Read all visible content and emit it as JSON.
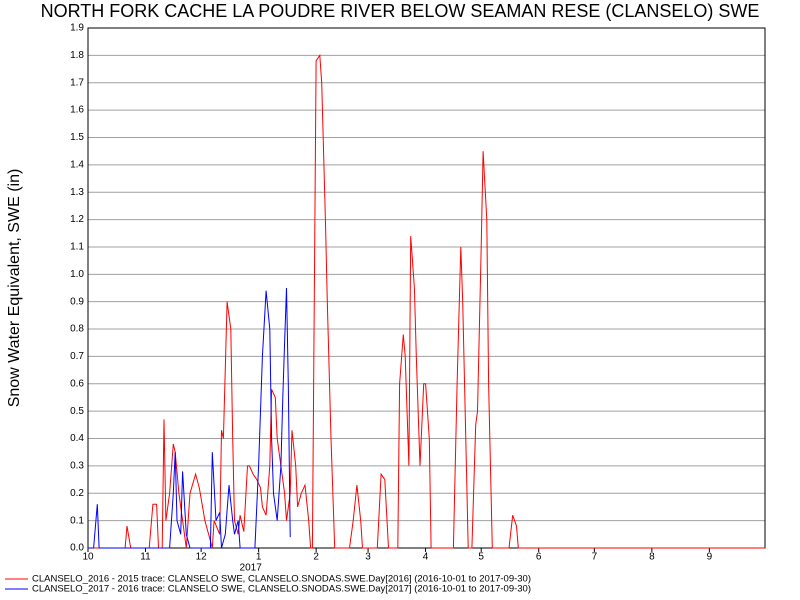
{
  "chart_data": {
    "type": "line",
    "title": "NORTH FORK CACHE LA POUDRE RIVER BELOW SEAMAN RESE (CLANSELO) SWE",
    "y_label": "Snow Water Equivalent, SWE (in)",
    "x_year_label": "2017",
    "xlim": [
      0,
      365
    ],
    "xticks": [
      {
        "value": 0,
        "label": "10"
      },
      {
        "value": 31,
        "label": "11"
      },
      {
        "value": 61,
        "label": "12"
      },
      {
        "value": 92,
        "label": "1"
      },
      {
        "value": 123,
        "label": "2"
      },
      {
        "value": 151,
        "label": "3"
      },
      {
        "value": 182,
        "label": "4"
      },
      {
        "value": 212,
        "label": "5"
      },
      {
        "value": 243,
        "label": "6"
      },
      {
        "value": 273,
        "label": "7"
      },
      {
        "value": 304,
        "label": "8"
      },
      {
        "value": 335,
        "label": "9"
      }
    ],
    "ylim": [
      0,
      1.9
    ],
    "yticks": [
      {
        "value": 0,
        "label": "0.0"
      },
      0.1,
      0.2,
      0.3,
      0.4,
      0.5,
      0.6,
      0.7,
      0.8,
      0.9,
      {
        "value": 1,
        "label": "1.0"
      },
      1.1,
      1.2,
      1.3,
      1.4,
      1.5,
      1.6,
      1.7,
      1.8,
      1.9
    ],
    "grid": true,
    "series": [
      {
        "name": "CLANSELO_2016 - 2015 trace: CLANSELO SWE, CLANSELO.SNODAS.SWE.Day[2016] (2016-10-01 to 2017-09-30)",
        "color": "#ff0000",
        "x": [
          0,
          20,
          21,
          23,
          33,
          35,
          37,
          38,
          40,
          41,
          42,
          44,
          46,
          47,
          49,
          51,
          53,
          55,
          58,
          60,
          63,
          65,
          67,
          68,
          71,
          72,
          73,
          75,
          77,
          78,
          79,
          81,
          82,
          84,
          86,
          87,
          89,
          91,
          93,
          94,
          96,
          98,
          99,
          101,
          102,
          104,
          106,
          107,
          109,
          110,
          112,
          113,
          115,
          117,
          119,
          120,
          121,
          123,
          125,
          126,
          128,
          129,
          131,
          133,
          141,
          143,
          145,
          147,
          148,
          156,
          158,
          160,
          162,
          167,
          168,
          170,
          171,
          173,
          174,
          176,
          177,
          179,
          181,
          182,
          184,
          185,
          197,
          199,
          201,
          202,
          204,
          205,
          207,
          209,
          210,
          212,
          213,
          215,
          216,
          218,
          227,
          229,
          231,
          232,
          365
        ],
        "values": [
          0,
          0,
          0.08,
          0,
          0,
          0.16,
          0.16,
          0,
          0,
          0.47,
          0.1,
          0.2,
          0.38,
          0.35,
          0.2,
          0.1,
          0,
          0.2,
          0.27,
          0.22,
          0.1,
          0.05,
          0,
          0.1,
          0.05,
          0.43,
          0.4,
          0.9,
          0.8,
          0.4,
          0.1,
          0.05,
          0.12,
          0.06,
          0.3,
          0.3,
          0.27,
          0.25,
          0.22,
          0.15,
          0.12,
          0.3,
          0.58,
          0.55,
          0.4,
          0.3,
          0.2,
          0.1,
          0.2,
          0.43,
          0.3,
          0.15,
          0.2,
          0.23,
          0.1,
          0,
          0,
          1.78,
          1.8,
          1.7,
          1.2,
          0.9,
          0.4,
          0,
          0,
          0.1,
          0.23,
          0.1,
          0,
          0,
          0.27,
          0.25,
          0,
          0,
          0.6,
          0.78,
          0.7,
          0.3,
          1.14,
          0.95,
          0.7,
          0.3,
          0.6,
          0.6,
          0.4,
          0,
          0,
          0.6,
          1.1,
          0.9,
          0.3,
          0,
          0,
          0.45,
          0.5,
          1.1,
          1.45,
          1.2,
          0.6,
          0,
          0,
          0.12,
          0.08,
          0,
          0
        ]
      },
      {
        "name": "CLANSELO_2017 - 2016 trace: CLANSELO SWE, CLANSELO.SNODAS.SWE.Day[2017] (2016-10-01 to 2017-09-30)",
        "color": "#0000ff",
        "x": [
          0,
          3,
          5,
          6,
          44,
          46,
          47,
          48,
          50,
          51,
          53,
          55,
          66,
          67,
          69,
          71,
          72,
          74,
          76,
          78,
          79,
          81,
          82,
          85,
          90,
          92,
          94,
          96,
          98,
          99,
          100,
          102,
          104,
          105,
          106,
          107,
          108,
          109
        ],
        "values": [
          0,
          0,
          0.16,
          0,
          0,
          0.2,
          0.35,
          0.1,
          0.05,
          0.28,
          0.05,
          0,
          0,
          0.35,
          0.1,
          0.13,
          0,
          0.05,
          0.23,
          0.1,
          0.05,
          0.1,
          0,
          0,
          0,
          0.3,
          0.7,
          0.94,
          0.8,
          0.4,
          0.2,
          0.1,
          0.3,
          0.55,
          0.75,
          0.95,
          0.6,
          0.04
        ]
      }
    ]
  }
}
